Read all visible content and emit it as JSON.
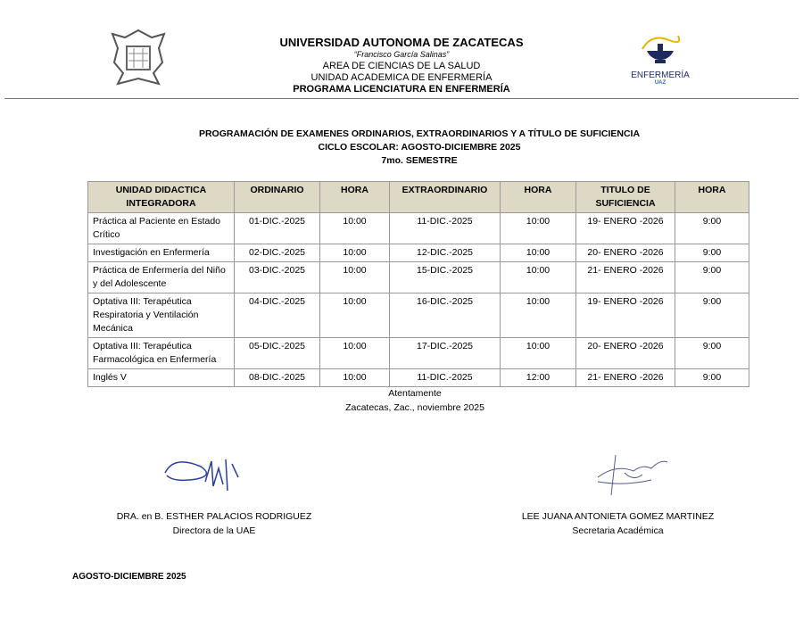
{
  "header": {
    "university": "UNIVERSIDAD AUTONOMA DE ZACATECAS",
    "motto": "“Francisco García Salinas”",
    "area": "AREA DE CIENCIAS DE LA SALUD",
    "unit": "UNIDAD ACADEMICA DE ENFERMERÍA",
    "program": "PROGRAMA LICENCIATURA EN ENFERMERÍA",
    "logo_right_text": "ENFERMERÍA",
    "logo_right_sub": "UAZ"
  },
  "titles": {
    "line1": "PROGRAMACIÓN DE EXAMENES ORDINARIOS, EXTRAORDINARIOS Y A TÍTULO DE SUFICIENCIA",
    "line2": "CICLO ESCOLAR: AGOSTO-DICIEMBRE 2025",
    "line3": "7mo. SEMESTRE"
  },
  "table": {
    "headers": [
      "UNIDAD DIDACTICA INTEGRADORA",
      "ORDINARIO",
      "HORA",
      "EXTRAORDINARIO",
      "HORA",
      "TITULO DE SUFICIENCIA",
      "HORA"
    ],
    "rows": [
      [
        "Práctica al Paciente en Estado Crítico",
        "01-DIC.-2025",
        "10:00",
        "11-DIC.-2025",
        "10:00",
        "19- ENERO -2026",
        "9:00"
      ],
      [
        "Investigación en Enfermería",
        "02-DIC.-2025",
        "10:00",
        "12-DIC.-2025",
        "10:00",
        "20- ENERO -2026",
        "9:00"
      ],
      [
        "Práctica de Enfermería del Niño y del Adolescente",
        "03-DIC.-2025",
        "10:00",
        "15-DIC.-2025",
        "10:00",
        "21- ENERO -2026",
        "9:00"
      ],
      [
        "Optativa III: Terapéutica Respiratoria y Ventilación Mecánica",
        "04-DIC.-2025",
        "10:00",
        "16-DIC.-2025",
        "10:00",
        "19- ENERO -2026",
        "9:00"
      ],
      [
        "Optativa III: Terapéutica Farmacológica en Enfermería",
        "05-DIC.-2025",
        "10:00",
        "17-DIC.-2025",
        "10:00",
        "20- ENERO -2026",
        "9:00"
      ],
      [
        "Inglés V",
        "08-DIC.-2025",
        "10:00",
        "11-DIC.-2025",
        "12:00",
        "21- ENERO -2026",
        "9:00"
      ]
    ]
  },
  "closing": {
    "line1": "Atentamente",
    "line2": "Zacatecas, Zac., noviembre 2025"
  },
  "signatures": [
    {
      "name": "DRA. en B. ESTHER PALACIOS RODRIGUEZ",
      "role": "Directora de la UAE"
    },
    {
      "name": "LEE JUANA ANTONIETA GOMEZ MARTINEZ",
      "role": "Secretaria Académica"
    }
  ],
  "footer": "AGOSTO-DICIEMBRE 2025",
  "colors": {
    "table_header_bg": "#ddd9c4",
    "signature_ink": "#2a3f9a"
  }
}
